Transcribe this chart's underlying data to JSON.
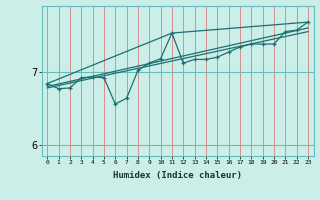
{
  "xlabel": "Humidex (Indice chaleur)",
  "ylabel": "",
  "bg_color": "#cceee8",
  "line_color": "#1a7070",
  "grid_color_v": "#d98080",
  "grid_color_h": "#66bbbb",
  "xlim": [
    -0.5,
    23.5
  ],
  "ylim": [
    5.85,
    7.9
  ],
  "yticks": [
    6,
    7
  ],
  "xticks": [
    0,
    1,
    2,
    3,
    4,
    5,
    6,
    7,
    8,
    9,
    10,
    11,
    12,
    13,
    14,
    15,
    16,
    17,
    18,
    19,
    20,
    21,
    22,
    23
  ],
  "series1_x": [
    0,
    1,
    2,
    3,
    4,
    5,
    6,
    7,
    8,
    9,
    10,
    11,
    12,
    13,
    14,
    15,
    16,
    17,
    18,
    19,
    20,
    21,
    22,
    23
  ],
  "series1_y": [
    6.84,
    6.77,
    6.78,
    6.92,
    6.93,
    6.92,
    6.56,
    6.64,
    7.02,
    7.12,
    7.18,
    7.53,
    7.12,
    7.17,
    7.17,
    7.2,
    7.27,
    7.34,
    7.38,
    7.38,
    7.38,
    7.55,
    7.57,
    7.68
  ],
  "series2_x": [
    0,
    11,
    23
  ],
  "series2_y": [
    6.84,
    7.53,
    7.68
  ],
  "series3_x": [
    0,
    23
  ],
  "series3_y": [
    6.8,
    7.6
  ],
  "series4_x": [
    0,
    23
  ],
  "series4_y": [
    6.78,
    7.55
  ]
}
